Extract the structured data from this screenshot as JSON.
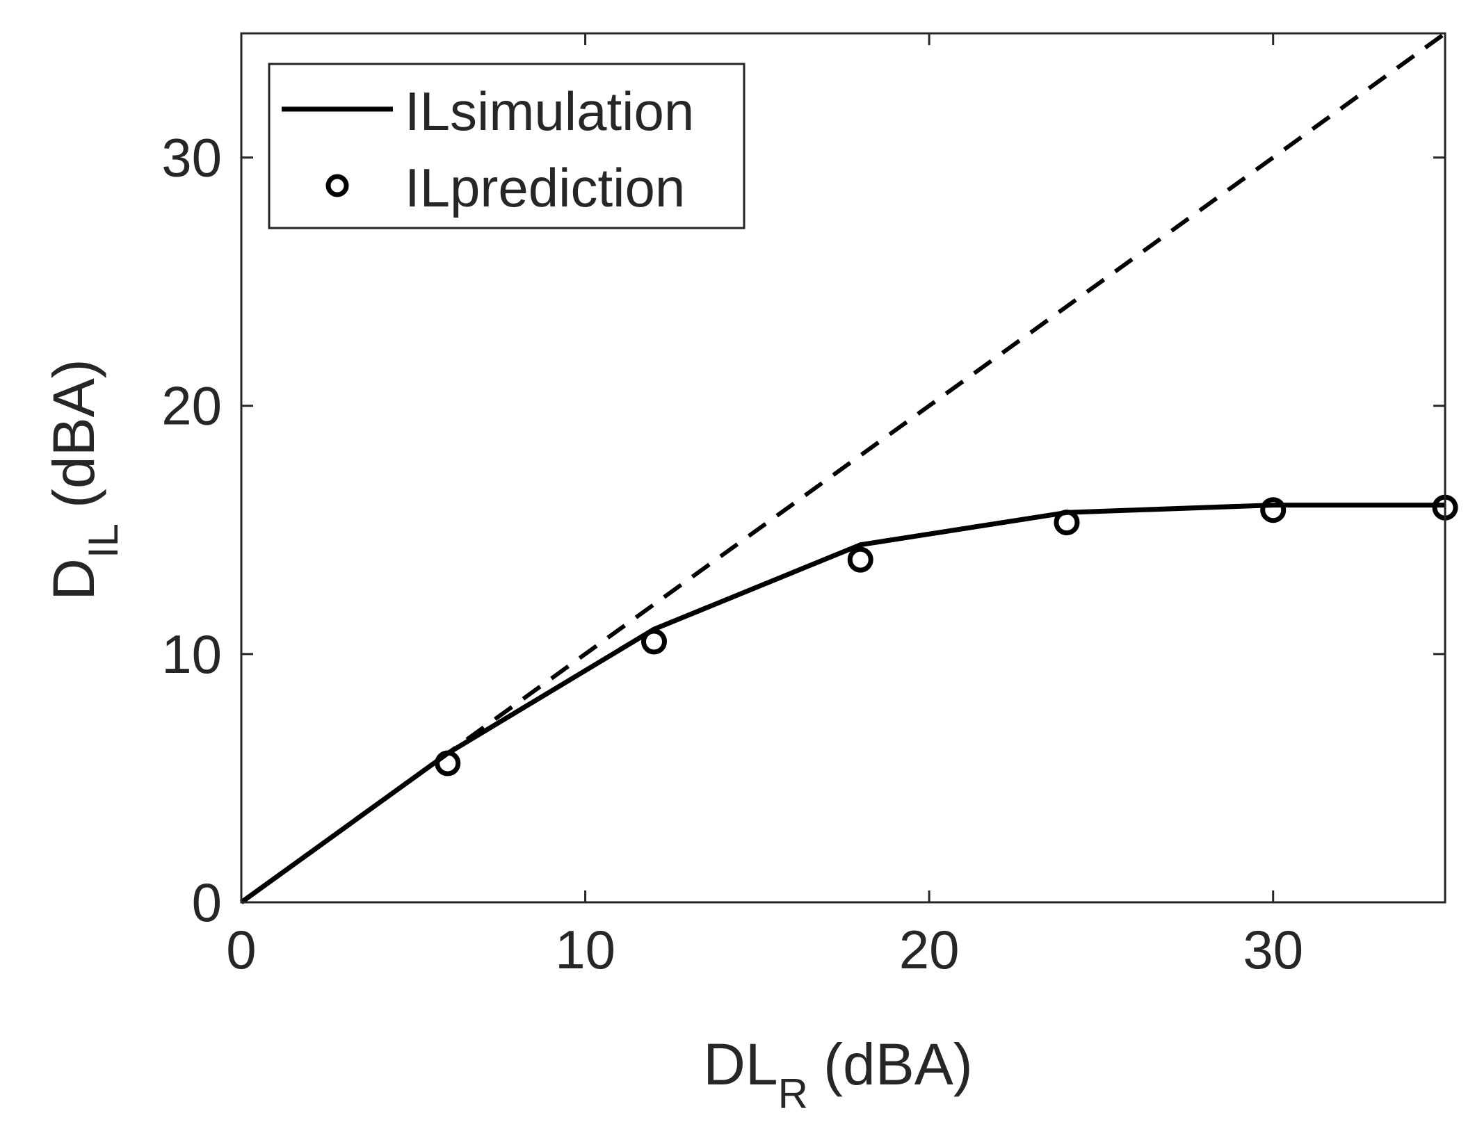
{
  "chart_data": {
    "type": "line",
    "title": "",
    "xlabel": {
      "main": "DL",
      "sub": "R",
      "unit": "(dBA)"
    },
    "ylabel": {
      "main": "D",
      "sub": "IL",
      "unit": "(dBA)"
    },
    "xlim": [
      0,
      35
    ],
    "ylim": [
      0,
      35
    ],
    "xticks": [
      0,
      10,
      20,
      30
    ],
    "yticks": [
      0,
      10,
      20,
      30
    ],
    "grid": false,
    "legend_position": "top-left",
    "series": [
      {
        "name": "ILsimulation",
        "style": "solid",
        "x": [
          0,
          6,
          12,
          18,
          24,
          30,
          35
        ],
        "y": [
          0,
          6,
          11,
          14.4,
          15.7,
          16,
          16
        ]
      },
      {
        "name": "ILprediction",
        "style": "marker-circle",
        "x": [
          6,
          12,
          18,
          24,
          30,
          35
        ],
        "y": [
          5.6,
          10.5,
          13.8,
          15.3,
          15.8,
          15.9
        ]
      },
      {
        "name": "reference-line",
        "style": "dashed",
        "show_in_legend": false,
        "x": [
          0,
          35
        ],
        "y": [
          0,
          35
        ]
      }
    ]
  },
  "colors": {
    "line": "#000000",
    "axis": "#262626",
    "background": "#ffffff"
  }
}
